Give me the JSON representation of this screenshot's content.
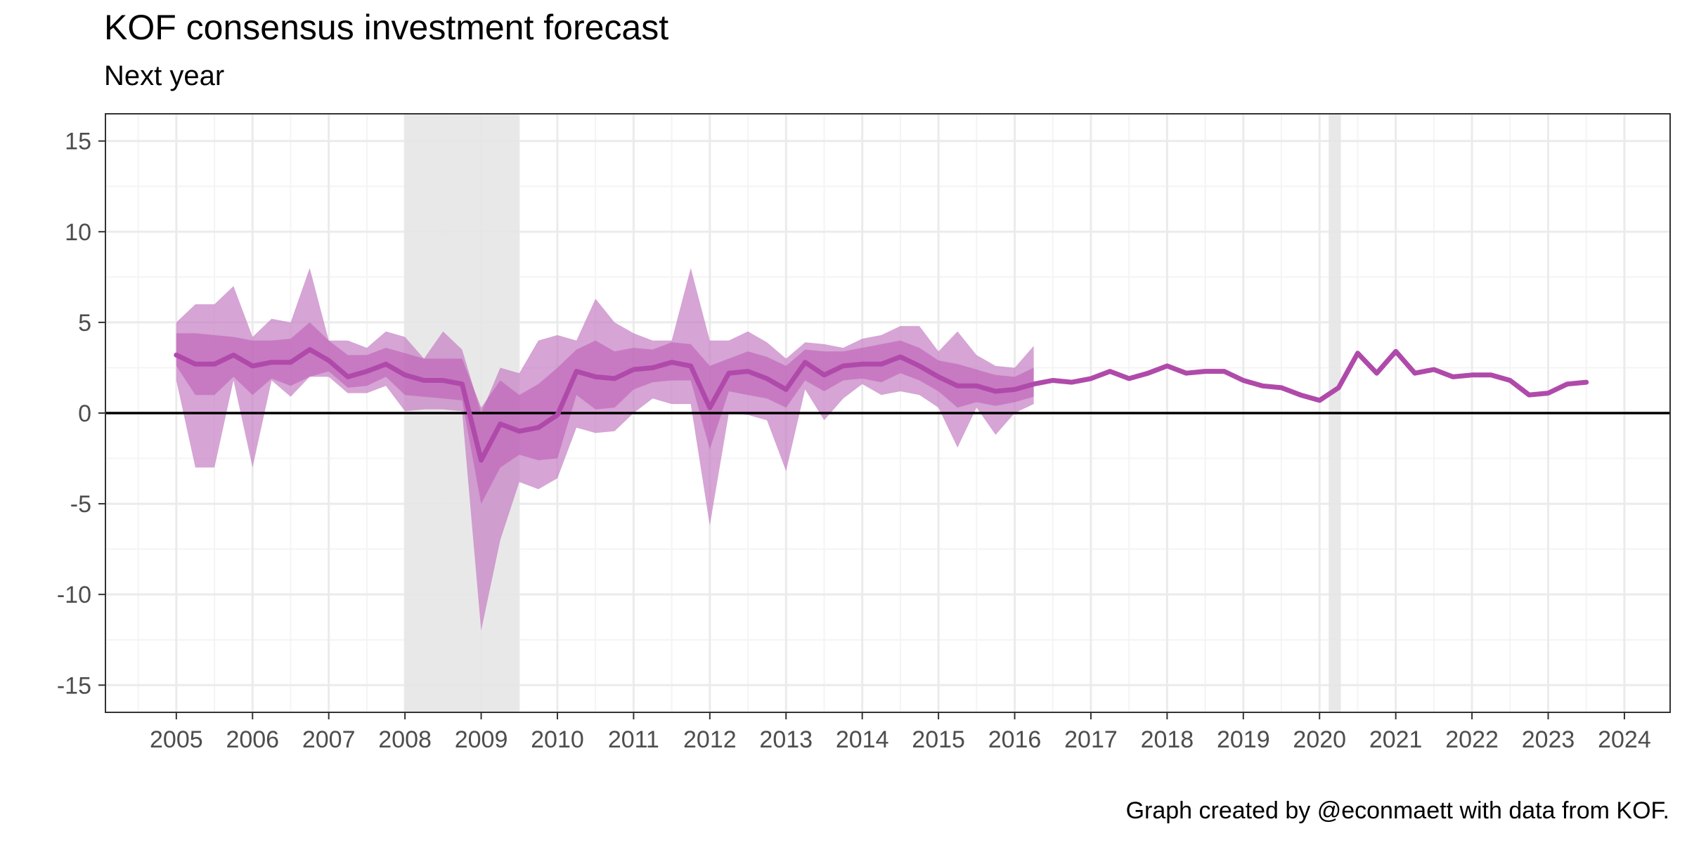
{
  "chart_data": {
    "type": "line",
    "title": "KOF consensus investment forecast",
    "subtitle": "Next year",
    "caption": "Graph created by @econmaett with data from KOF.",
    "xlabel": "",
    "ylabel": "",
    "xlim": [
      2004.07,
      2024.6
    ],
    "ylim": [
      -16.5,
      16.5
    ],
    "x_ticks": [
      2005,
      2006,
      2007,
      2008,
      2009,
      2010,
      2011,
      2012,
      2013,
      2014,
      2015,
      2016,
      2017,
      2018,
      2019,
      2020,
      2021,
      2022,
      2023,
      2024
    ],
    "y_ticks": [
      -15,
      -10,
      -5,
      0,
      5,
      10,
      15
    ],
    "y_tick_labels": [
      "-15",
      "-10",
      "-5",
      "0",
      "5",
      "10",
      "15"
    ],
    "grid": true,
    "reference_line_y": 0,
    "shaded_periods": [
      {
        "start": 2008.0,
        "end": 2009.5
      },
      {
        "start": 2020.12,
        "end": 2020.28
      }
    ],
    "colors": {
      "line": "#b04aaa",
      "band_outer": "#c47ec3",
      "band_inner": "#bb57b3",
      "shading": "#e6e6e6",
      "grid_major": "#ebebeb",
      "grid_minor": "#f4f4f4",
      "zero_line": "#000000",
      "panel_border": "#333333",
      "text": "#4d4d4d"
    },
    "series": [
      {
        "x": [
          2005.0,
          2005.25,
          2005.5,
          2005.75,
          2006.0,
          2006.25,
          2006.5,
          2006.75,
          2007.0,
          2007.25,
          2007.5,
          2007.75,
          2008.0,
          2008.25,
          2008.5,
          2008.75,
          2009.0,
          2009.25,
          2009.5,
          2009.75,
          2010.0,
          2010.25,
          2010.5,
          2010.75,
          2011.0,
          2011.25,
          2011.5,
          2011.75,
          2012.0,
          2012.25,
          2012.5,
          2012.75,
          2013.0,
          2013.25,
          2013.5,
          2013.75,
          2014.0,
          2014.25,
          2014.5,
          2014.75,
          2015.0,
          2015.25,
          2015.5,
          2015.75,
          2016.0,
          2016.25,
          2016.5,
          2016.75,
          2017.0,
          2017.25,
          2017.5,
          2017.75,
          2018.0,
          2018.25,
          2018.5,
          2018.75,
          2019.0,
          2019.25,
          2019.5,
          2019.75,
          2020.0,
          2020.25,
          2020.5,
          2020.75,
          2021.0,
          2021.25,
          2021.5,
          2021.75,
          2022.0,
          2022.25,
          2022.5,
          2022.75,
          2023.0,
          2023.25,
          2023.5
        ],
        "y": [
          3.2,
          2.7,
          2.7,
          3.2,
          2.6,
          2.8,
          2.8,
          3.5,
          2.9,
          2.0,
          2.3,
          2.7,
          2.1,
          1.8,
          1.8,
          1.6,
          -2.6,
          -0.6,
          -1.0,
          -0.8,
          -0.1,
          2.3,
          2.0,
          1.9,
          2.4,
          2.5,
          2.8,
          2.6,
          0.3,
          2.2,
          2.3,
          1.9,
          1.3,
          2.8,
          2.1,
          2.6,
          2.7,
          2.7,
          3.1,
          2.6,
          2.0,
          1.5,
          1.5,
          1.2,
          1.3,
          1.6,
          1.8,
          1.7,
          1.9,
          2.3,
          1.9,
          2.2,
          2.6,
          2.2,
          2.3,
          2.3,
          1.8,
          1.5,
          1.4,
          1.0,
          0.7,
          1.4,
          3.3,
          2.2,
          3.4,
          2.2,
          2.4,
          2.0,
          2.1,
          2.1,
          1.8,
          1.0,
          1.1,
          1.6,
          1.7
        ]
      }
    ],
    "band_x": [
      2005.0,
      2005.25,
      2005.5,
      2005.75,
      2006.0,
      2006.25,
      2006.5,
      2006.75,
      2007.0,
      2007.25,
      2007.5,
      2007.75,
      2008.0,
      2008.25,
      2008.5,
      2008.75,
      2009.0,
      2009.25,
      2009.5,
      2009.75,
      2010.0,
      2010.25,
      2010.5,
      2010.75,
      2011.0,
      2011.25,
      2011.5,
      2011.75,
      2012.0,
      2012.25,
      2012.5,
      2012.75,
      2013.0,
      2013.25,
      2013.5,
      2013.75,
      2014.0,
      2014.25,
      2014.5,
      2014.75,
      2015.0,
      2015.25,
      2015.5,
      2015.75,
      2016.0,
      2016.25
    ],
    "band_outer_upper": [
      5.0,
      6.0,
      6.0,
      7.0,
      4.2,
      5.2,
      5.0,
      8.0,
      4.0,
      4.0,
      3.6,
      4.5,
      4.2,
      3.0,
      4.5,
      3.5,
      0.0,
      2.5,
      2.2,
      4.0,
      4.3,
      4.0,
      6.3,
      5.0,
      4.4,
      4.0,
      4.0,
      8.0,
      4.0,
      4.0,
      4.5,
      3.9,
      3.0,
      3.9,
      3.8,
      3.6,
      4.1,
      4.3,
      4.8,
      4.8,
      3.4,
      4.5,
      3.2,
      2.6,
      2.5,
      3.7
    ],
    "band_outer_lower": [
      1.8,
      -3.0,
      -3.0,
      1.8,
      -3.0,
      1.8,
      0.9,
      2.0,
      2.0,
      1.1,
      1.1,
      1.5,
      0.1,
      0.2,
      0.2,
      0.1,
      -12.0,
      -7.0,
      -3.8,
      -4.2,
      -3.6,
      -0.8,
      -1.1,
      -1.0,
      0.0,
      0.8,
      0.5,
      0.5,
      -6.2,
      0.0,
      -0.1,
      -0.4,
      -3.2,
      1.3,
      -0.4,
      0.8,
      1.6,
      1.0,
      1.2,
      1.0,
      0.3,
      -1.9,
      0.3,
      -1.2,
      0.0,
      0.5
    ],
    "band_inner_upper": [
      4.4,
      4.4,
      4.3,
      4.2,
      4.0,
      4.0,
      4.1,
      5.0,
      4.0,
      3.2,
      3.2,
      3.6,
      3.3,
      3.0,
      3.0,
      3.0,
      0.3,
      1.8,
      1.0,
      1.6,
      2.5,
      3.5,
      4.0,
      3.4,
      3.6,
      3.5,
      3.9,
      3.8,
      2.6,
      3.0,
      3.4,
      3.1,
      2.6,
      3.5,
      3.4,
      3.4,
      3.6,
      3.8,
      4.0,
      3.6,
      2.9,
      2.7,
      2.4,
      2.1,
      2.0,
      2.5
    ],
    "band_inner_lower": [
      2.6,
      1.0,
      1.0,
      2.0,
      1.0,
      1.9,
      1.5,
      2.0,
      2.3,
      1.4,
      1.5,
      2.0,
      1.0,
      0.9,
      0.8,
      0.7,
      -5.0,
      -3.0,
      -2.3,
      -2.6,
      -2.5,
      1.0,
      0.2,
      0.3,
      1.3,
      1.7,
      1.8,
      1.8,
      -2.0,
      1.2,
      1.0,
      0.8,
      0.3,
      1.8,
      1.2,
      1.8,
      1.9,
      1.7,
      2.2,
      1.8,
      1.2,
      0.3,
      0.6,
      0.4,
      0.6,
      0.9
    ]
  }
}
